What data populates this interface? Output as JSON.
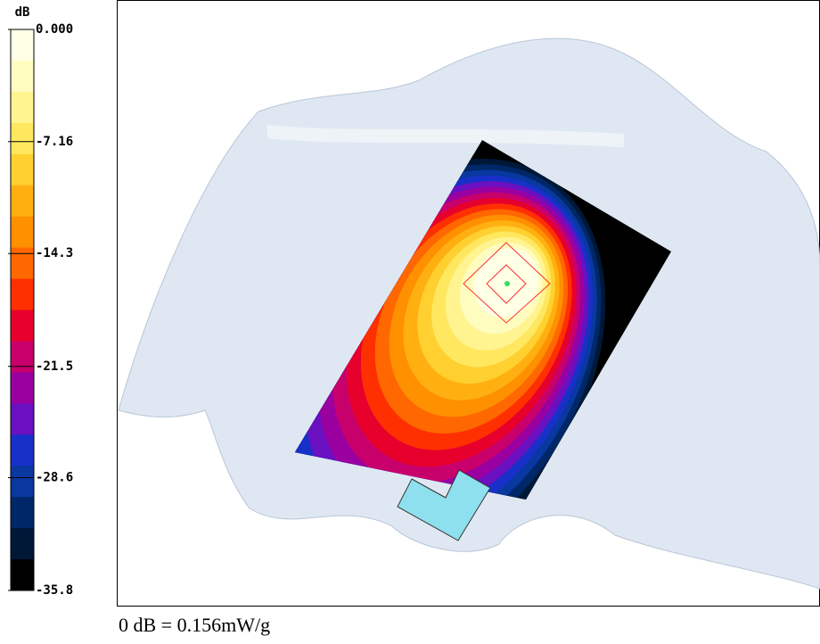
{
  "chart_data": {
    "type": "heatmap",
    "colorbar_label": "dB",
    "colorbar_lim": [
      -35.8,
      0
    ],
    "colorbar_ticks": [
      {
        "value": 0,
        "label": "0.000"
      },
      -7.16,
      -14.3,
      -21.5,
      -28.6,
      -35.8
    ],
    "colors": [
      "#ffffe6",
      "#fffcc0",
      "#fff490",
      "#ffe860",
      "#ffd030",
      "#ffb010",
      "#ff9000",
      "#ff6800",
      "#ff3000",
      "#e8002c",
      "#c8006c",
      "#9a00a0",
      "#6a10c0",
      "#1830c8",
      "#0838a0",
      "#002868",
      "#001838",
      "#000000"
    ],
    "footnote": "0 dB = 0.156mW/g"
  }
}
